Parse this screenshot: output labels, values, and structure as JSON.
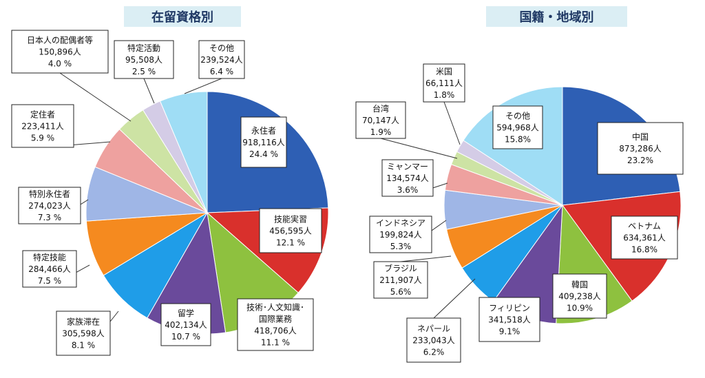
{
  "chart_data": [
    {
      "type": "pie",
      "title": "在留資格別",
      "unit": "人",
      "slices": [
        {
          "label": "永住者",
          "value": 918116,
          "value_text": "918,116人",
          "percent_text": "24.4 %",
          "color": "#2e5fb4"
        },
        {
          "label": "技能実習",
          "value": 456595,
          "value_text": "456,595人",
          "percent_text": "12.1 %",
          "color": "#d9302c"
        },
        {
          "label": "技術･人文知識･国際業務",
          "value": 418706,
          "value_text": "418,706人",
          "percent_text": "11.1 %",
          "color": "#8ec13f"
        },
        {
          "label": "留学",
          "value": 402134,
          "value_text": "402,134人",
          "percent_text": "10.7 %",
          "color": "#6a4a9b"
        },
        {
          "label": "家族滞在",
          "value": 305598,
          "value_text": "305,598人",
          "percent_text": "8.1 %",
          "color": "#1f9de8"
        },
        {
          "label": "特定技能",
          "value": 284466,
          "value_text": "284,466人",
          "percent_text": "7.5 %",
          "color": "#f58a1f"
        },
        {
          "label": "特別永住者",
          "value": 274023,
          "value_text": "274,023人",
          "percent_text": "7.3 %",
          "color": "#9fb6e6"
        },
        {
          "label": "定住者",
          "value": 223411,
          "value_text": "223,411人",
          "percent_text": "5.9 %",
          "color": "#eea19f"
        },
        {
          "label": "日本人の配偶者等",
          "value": 150896,
          "value_text": "150,896人",
          "percent_text": "4.0 %",
          "color": "#cde3a4"
        },
        {
          "label": "特定活動",
          "value": 95508,
          "value_text": "95,508人",
          "percent_text": "2.5 %",
          "color": "#d4cce6"
        },
        {
          "label": "その他",
          "value": 239524,
          "value_text": "239,524人",
          "percent_text": "6.4 %",
          "color": "#9fddf5"
        }
      ]
    },
    {
      "type": "pie",
      "title": "国籍・地域別",
      "unit": "人",
      "slices": [
        {
          "label": "中国",
          "value": 873286,
          "value_text": "873,286人",
          "percent_text": "23.2%",
          "color": "#2e5fb4"
        },
        {
          "label": "ベトナム",
          "value": 634361,
          "value_text": "634,361人",
          "percent_text": "16.8%",
          "color": "#d9302c"
        },
        {
          "label": "韓国",
          "value": 409238,
          "value_text": "409,238人",
          "percent_text": "10.9%",
          "color": "#8ec13f"
        },
        {
          "label": "フィリピン",
          "value": 341518,
          "value_text": "341,518人",
          "percent_text": "9.1%",
          "color": "#6a4a9b"
        },
        {
          "label": "ネパール",
          "value": 233043,
          "value_text": "233,043人",
          "percent_text": "6.2%",
          "color": "#1f9de8"
        },
        {
          "label": "ブラジル",
          "value": 211907,
          "value_text": "211,907人",
          "percent_text": "5.6%",
          "color": "#f58a1f"
        },
        {
          "label": "インドネシア",
          "value": 199824,
          "value_text": "199,824人",
          "percent_text": "5.3%",
          "color": "#9fb6e6"
        },
        {
          "label": "ミャンマー",
          "value": 134574,
          "value_text": "134,574人",
          "percent_text": "3.6%",
          "color": "#eea19f"
        },
        {
          "label": "台湾",
          "value": 70147,
          "value_text": "70,147人",
          "percent_text": "1.9%",
          "color": "#cde3a4"
        },
        {
          "label": "米国",
          "value": 66111,
          "value_text": "66,111人",
          "percent_text": "1.8%",
          "color": "#d4cce6"
        },
        {
          "label": "その他",
          "value": 594968,
          "value_text": "594,968人",
          "percent_text": "15.8%",
          "color": "#9fddf5"
        }
      ]
    }
  ]
}
